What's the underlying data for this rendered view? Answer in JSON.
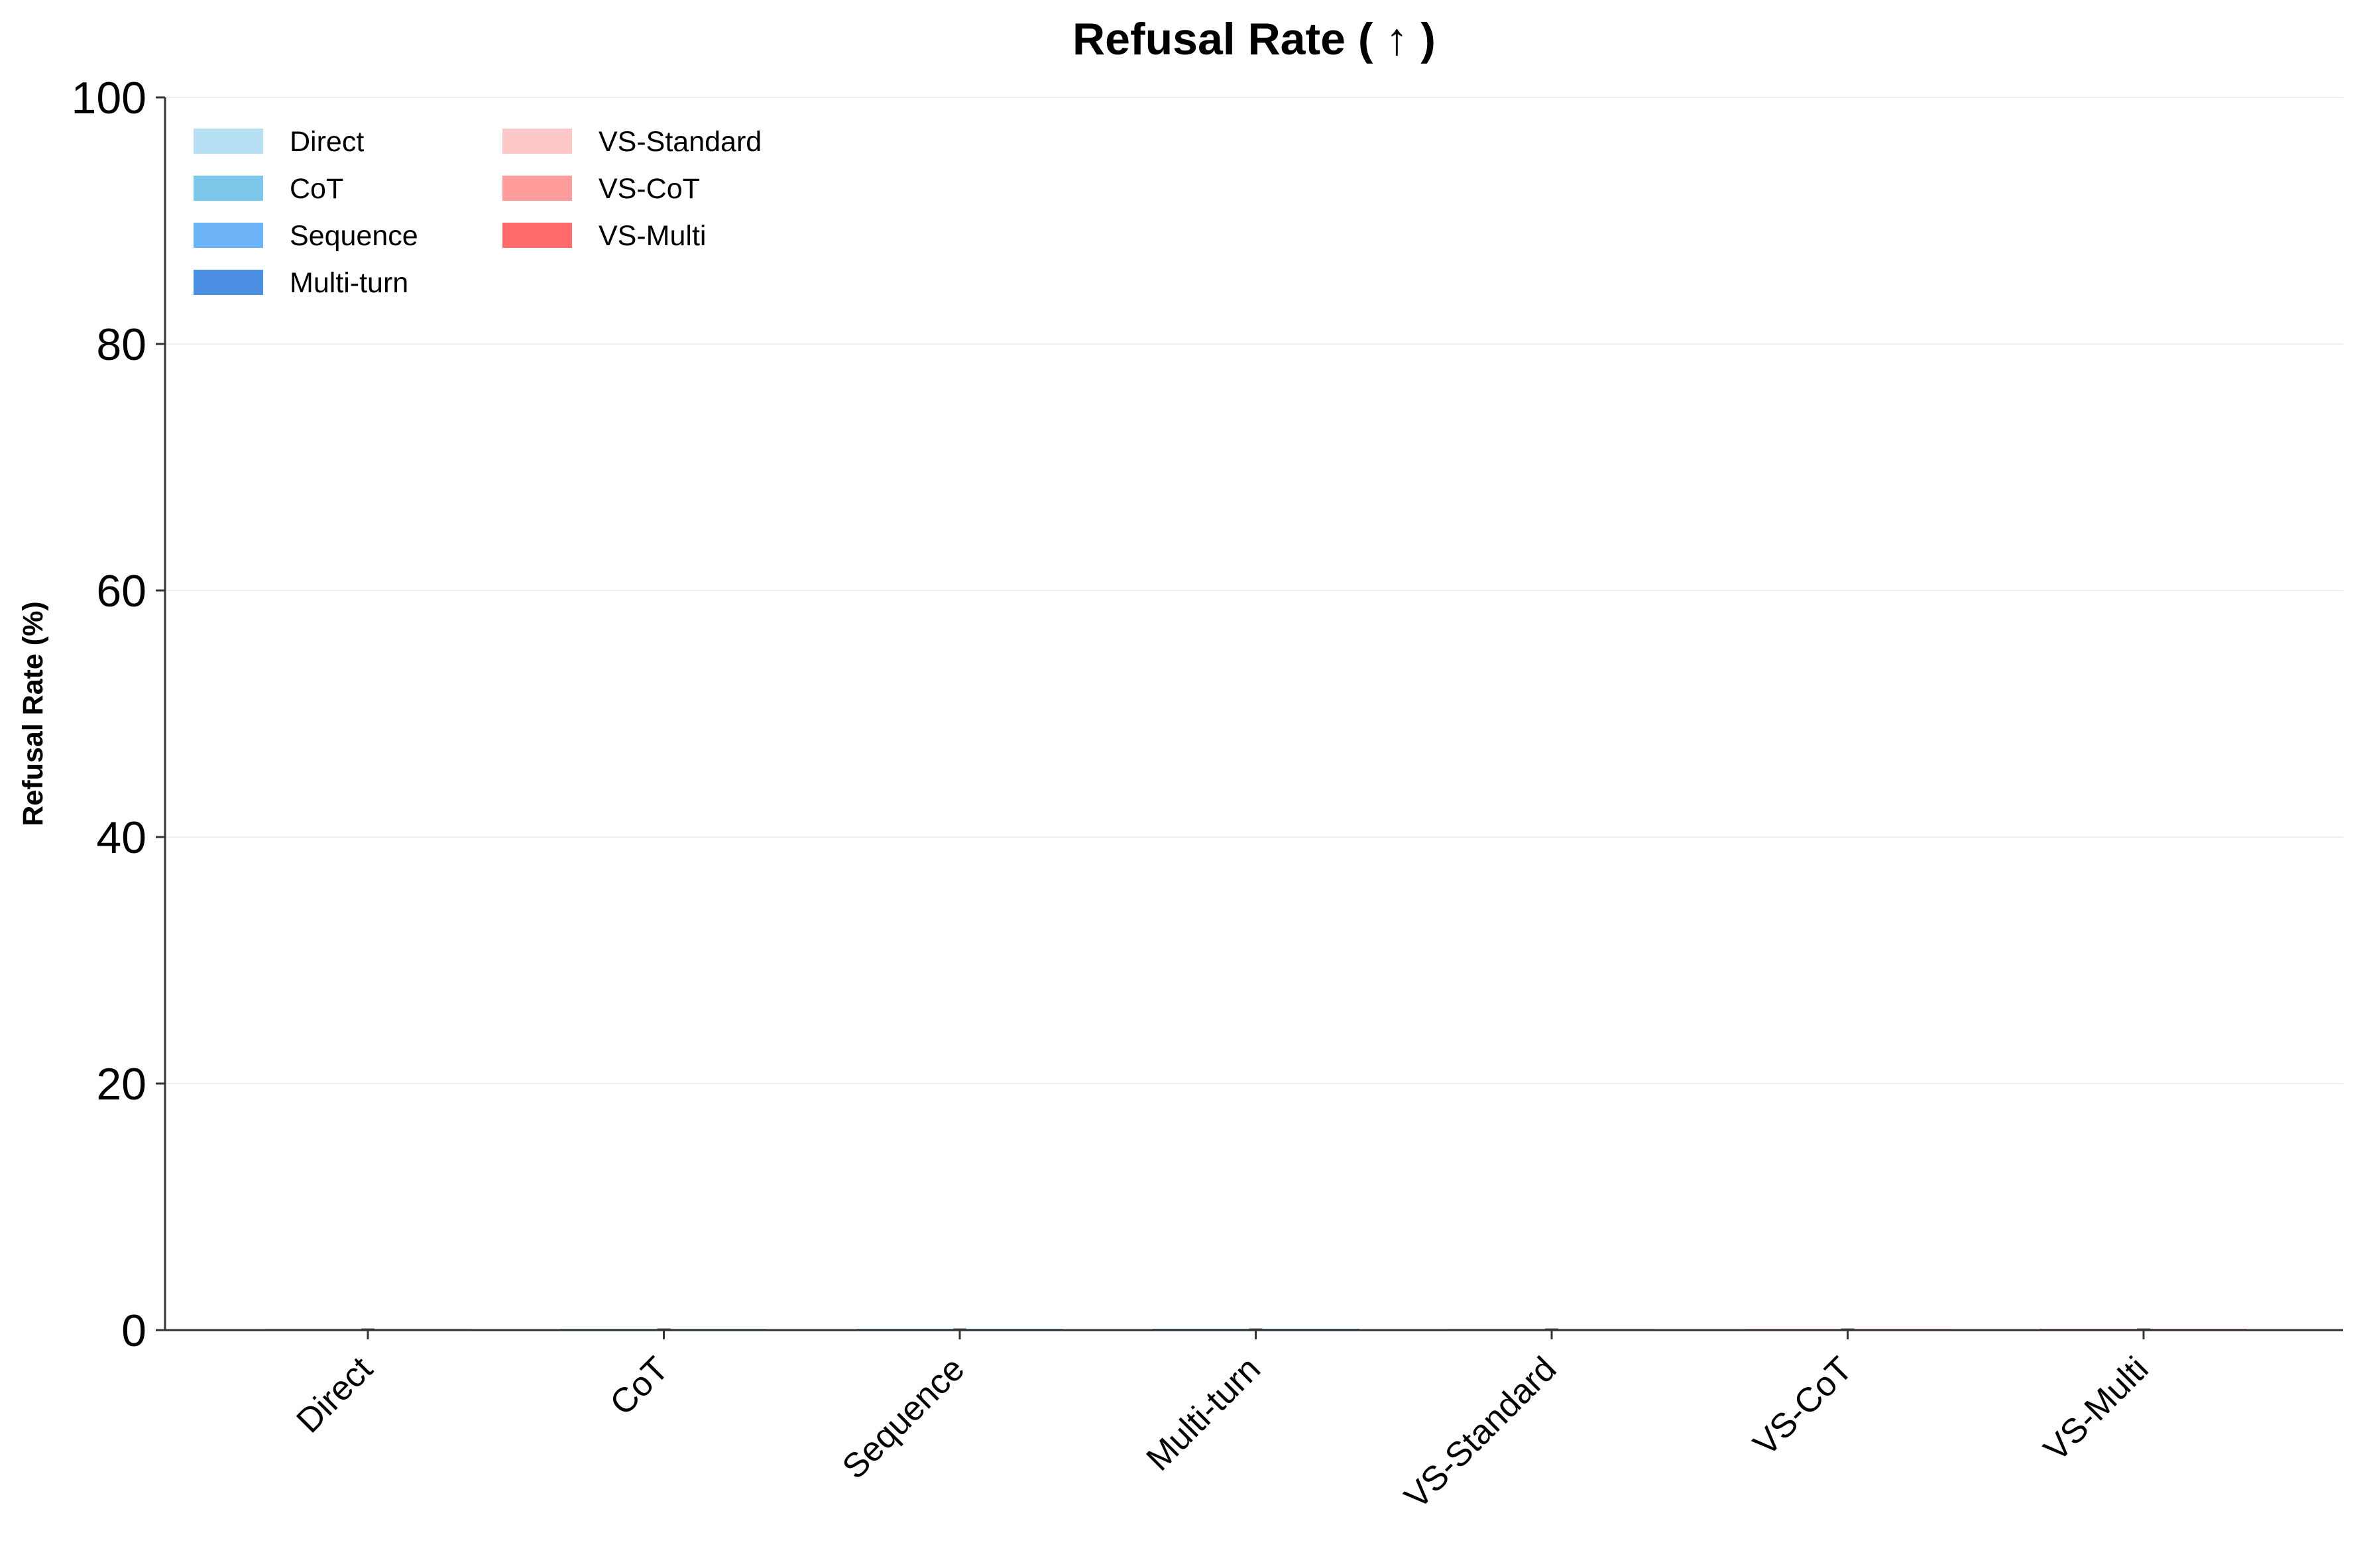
{
  "chart_data": {
    "type": "bar",
    "title": "Refusal Rate ( ↑ )",
    "xlabel": "",
    "ylabel": "Refusal Rate (%)",
    "ylim": [
      0,
      100
    ],
    "yticks": [
      "0",
      "20",
      "40",
      "60",
      "80",
      "100"
    ],
    "grid": true,
    "legend_position": "top-left",
    "categories": [
      "Direct",
      "CoT",
      "Sequence",
      "Multi-turn",
      "VS-Standard",
      "VS-CoT",
      "VS-Multi"
    ],
    "values": [
      0,
      0,
      0,
      0,
      0,
      0,
      0
    ],
    "errors": [
      0,
      0,
      0,
      0,
      0,
      0,
      0
    ],
    "colors": [
      "#b7e0f5",
      "#7dc7ea",
      "#6cb4f7",
      "#4a8fe2",
      "#ffc8c8",
      "#ff9d9d",
      "#ff6b6b"
    ],
    "legend": {
      "columns": [
        [
          "Direct",
          "CoT",
          "Sequence",
          "Multi-turn"
        ],
        [
          "VS-Standard",
          "VS-CoT",
          "VS-Multi"
        ]
      ]
    }
  }
}
